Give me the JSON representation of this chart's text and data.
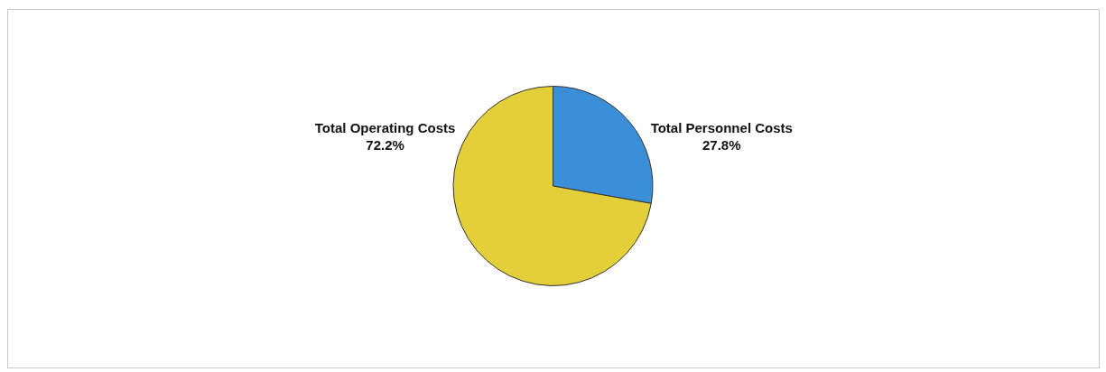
{
  "chart_data": {
    "type": "pie",
    "categories": [
      "Total Personnel Costs",
      "Total Operating Costs"
    ],
    "values": [
      27.8,
      72.2
    ],
    "colors": [
      "#3a8fd8",
      "#e3cf3a"
    ],
    "value_labels": [
      "27.8%",
      "72.2%"
    ],
    "legend": false
  }
}
